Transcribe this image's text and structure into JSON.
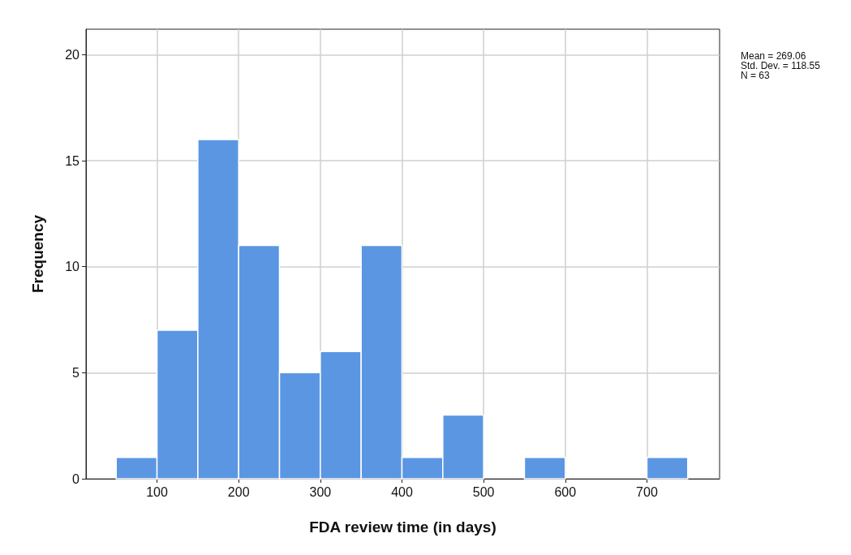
{
  "chart_data": {
    "type": "histogram",
    "xlabel": "FDA review time (in days)",
    "ylabel": "Frequency",
    "bins": [
      50,
      100,
      150,
      200,
      250,
      300,
      350,
      400,
      450,
      500,
      550,
      600,
      650,
      700,
      750
    ],
    "values": [
      1,
      7,
      16,
      11,
      5,
      6,
      11,
      1,
      3,
      0,
      1,
      0,
      0,
      1
    ],
    "color": "#5b96e3",
    "xlim": [
      13,
      789
    ],
    "xticks": [
      100,
      200,
      300,
      400,
      500,
      600,
      700
    ],
    "ylim": [
      0,
      21.2
    ],
    "yticks": [
      0,
      5,
      10,
      15,
      20
    ],
    "grid": true,
    "annotations": [
      "Mean = 269.06",
      "Std. Dev. = 118.55",
      "N = 63"
    ]
  }
}
